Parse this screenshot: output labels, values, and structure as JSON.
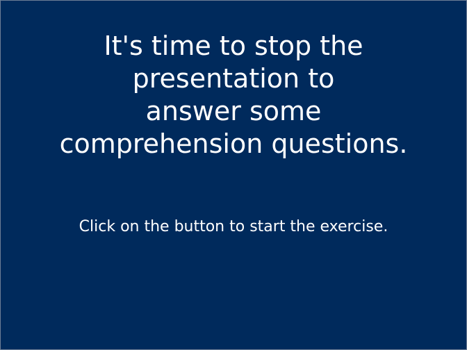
{
  "slide": {
    "background_color": "#002a5c",
    "text_color": "#ffffff",
    "headline_lines": [
      "It's time to stop the",
      "presentation to",
      "answer some",
      "comprehension questions."
    ],
    "instruction": "Click on the button to start the exercise."
  }
}
